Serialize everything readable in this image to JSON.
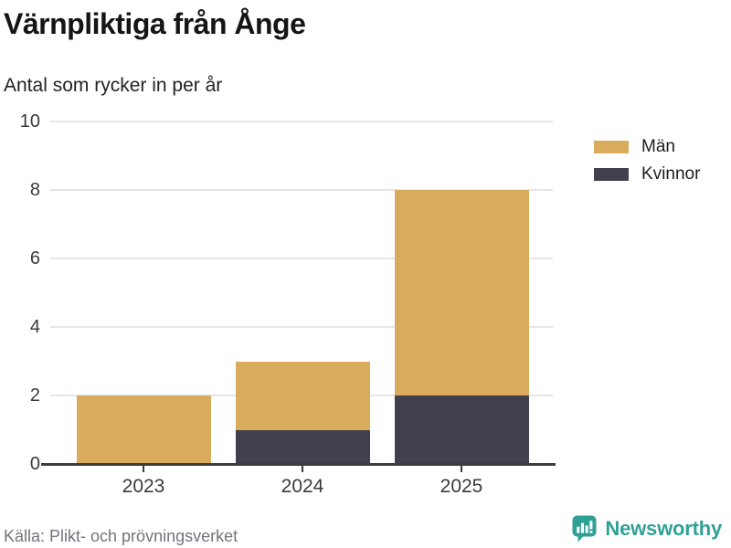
{
  "header": {
    "title": "Värnpliktiga från Ånge",
    "subtitle": "Antal som rycker in per år"
  },
  "chart_data": {
    "type": "bar",
    "stacked": true,
    "categories": [
      "2023",
      "2024",
      "2025"
    ],
    "series": [
      {
        "name": "Män",
        "color": "#d9ab5c",
        "values": [
          2,
          2,
          6
        ]
      },
      {
        "name": "Kvinnor",
        "color": "#42404f",
        "values": [
          0,
          1,
          2
        ]
      }
    ],
    "totals": [
      2,
      3,
      8
    ],
    "title": "Värnpliktiga från Ånge",
    "subtitle": "Antal som rycker in per år",
    "xlabel": "",
    "ylabel": "",
    "ylim": [
      0,
      10
    ],
    "yticks": [
      0,
      2,
      4,
      6,
      8,
      10
    ],
    "grid": true,
    "legend_position": "top-right"
  },
  "footer": {
    "source": "Källa: Plikt- och prövningsverket",
    "brand": "Newsworthy",
    "brand_color": "#2fa096"
  }
}
